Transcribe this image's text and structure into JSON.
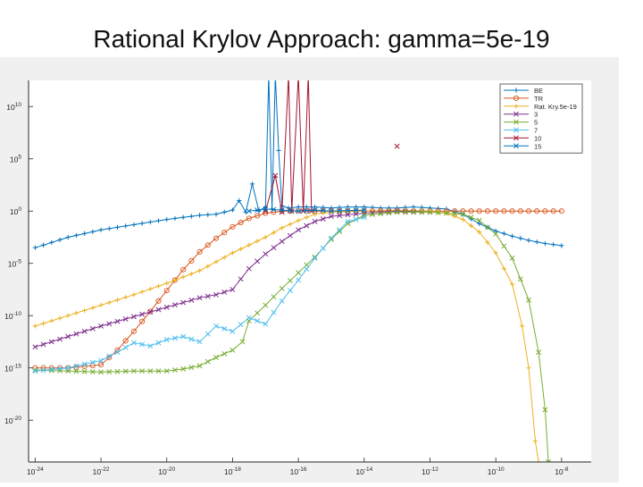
{
  "title": "Rational Krylov Approach: gamma=5e-19",
  "colors": {
    "BE": "#0072bd",
    "TR": "#d95319",
    "Rat": "#edb120",
    "s3": "#7e2f8e",
    "s5": "#77ac30",
    "s7": "#4dbeee",
    "s10": "#a2142f",
    "s15": "#0072bd"
  },
  "chart_data": {
    "type": "line",
    "title": "Rational Krylov Approach: gamma=5e-19",
    "x_scale": "log",
    "y_scale": "log",
    "xlim_exp": [
      -24.2,
      -7.1
    ],
    "ylim_exp": [
      -24,
      12.5
    ],
    "grid": false,
    "legend_position": "top-right",
    "x_ticks": [
      {
        "exp": -24,
        "base": "10",
        "sup": "-24"
      },
      {
        "exp": -22,
        "base": "10",
        "sup": "-22"
      },
      {
        "exp": -20,
        "base": "10",
        "sup": "-20"
      },
      {
        "exp": -18,
        "base": "10",
        "sup": "-18"
      },
      {
        "exp": -16,
        "base": "10",
        "sup": "-16"
      },
      {
        "exp": -14,
        "base": "10",
        "sup": "-14"
      },
      {
        "exp": -12,
        "base": "10",
        "sup": "-12"
      },
      {
        "exp": -10,
        "base": "10",
        "sup": "-10"
      },
      {
        "exp": -8,
        "base": "10",
        "sup": "-8"
      }
    ],
    "y_ticks": [
      {
        "exp": 10,
        "base": "10",
        "sup": "10"
      },
      {
        "exp": 5,
        "base": "10",
        "sup": "5"
      },
      {
        "exp": 0,
        "base": "10",
        "sup": "0"
      },
      {
        "exp": -5,
        "base": "10",
        "sup": "-5"
      },
      {
        "exp": -10,
        "base": "10",
        "sup": "-10"
      },
      {
        "exp": -15,
        "base": "10",
        "sup": "-15"
      },
      {
        "exp": -20,
        "base": "10",
        "sup": "-20"
      }
    ],
    "series": [
      {
        "key": "BE",
        "name": "BE",
        "marker": "plus",
        "color_key": "BE",
        "points": [
          [
            -24.0,
            -3.5
          ],
          [
            -23.0,
            -2.5
          ],
          [
            -22.0,
            -1.8
          ],
          [
            -21.0,
            -1.3
          ],
          [
            -20.0,
            -0.8
          ],
          [
            -19.0,
            -0.4
          ],
          [
            -18.5,
            -0.3
          ],
          [
            -18.0,
            0.1
          ],
          [
            -17.8,
            1.0
          ],
          [
            -17.6,
            -0.1
          ],
          [
            -17.4,
            2.6
          ],
          [
            -17.2,
            0.0
          ],
          [
            -17.0,
            0.4
          ],
          [
            -16.9,
            13.0
          ],
          [
            -16.8,
            0.2
          ],
          [
            -16.7,
            13.0
          ],
          [
            -16.6,
            5.8
          ],
          [
            -16.5,
            0.5
          ],
          [
            -16.3,
            0.3
          ],
          [
            -16.0,
            0.4
          ],
          [
            -15.5,
            0.4
          ],
          [
            -15.0,
            0.3
          ],
          [
            -14.5,
            0.4
          ],
          [
            -14.0,
            0.4
          ],
          [
            -13.5,
            0.3
          ],
          [
            -13.0,
            0.3
          ],
          [
            -12.5,
            0.4
          ],
          [
            -12.0,
            0.3
          ],
          [
            -11.5,
            0.2
          ],
          [
            -11.0,
            -0.3
          ],
          [
            -10.5,
            -1.2
          ],
          [
            -10.0,
            -1.9
          ],
          [
            -9.5,
            -2.4
          ],
          [
            -9.0,
            -2.8
          ],
          [
            -8.5,
            -3.1
          ],
          [
            -8.0,
            -3.3
          ]
        ]
      },
      {
        "key": "TR",
        "name": "TR",
        "marker": "circle",
        "color_key": "TR",
        "points": [
          [
            -24.0,
            -15.0
          ],
          [
            -23.0,
            -15.0
          ],
          [
            -22.0,
            -14.7
          ],
          [
            -21.5,
            -13.3
          ],
          [
            -21.0,
            -11.5
          ],
          [
            -20.5,
            -9.6
          ],
          [
            -20.0,
            -7.6
          ],
          [
            -19.5,
            -5.6
          ],
          [
            -19.0,
            -3.9
          ],
          [
            -18.5,
            -2.6
          ],
          [
            -18.0,
            -1.5
          ],
          [
            -17.5,
            -0.7
          ],
          [
            -17.0,
            -0.2
          ],
          [
            -16.5,
            0.0
          ],
          [
            -16.0,
            0.0
          ],
          [
            -15.0,
            0.0
          ],
          [
            -14.0,
            0.0
          ],
          [
            -13.0,
            0.0
          ],
          [
            -12.0,
            0.0
          ],
          [
            -11.0,
            0.0
          ],
          [
            -10.0,
            0.0
          ],
          [
            -9.0,
            0.0
          ],
          [
            -8.0,
            0.0
          ]
        ]
      },
      {
        "key": "Rat",
        "name": "Rat. Kry.5e-19",
        "marker": "plus",
        "color_key": "Rat",
        "points": [
          [
            -24.0,
            -11.0
          ],
          [
            -23.0,
            -10.0
          ],
          [
            -22.0,
            -9.0
          ],
          [
            -21.0,
            -8.0
          ],
          [
            -20.0,
            -6.9
          ],
          [
            -19.0,
            -5.7
          ],
          [
            -18.0,
            -4.0
          ],
          [
            -17.0,
            -2.5
          ],
          [
            -16.5,
            -1.6
          ],
          [
            -16.0,
            -0.9
          ],
          [
            -15.5,
            -0.3
          ],
          [
            -15.0,
            -0.1
          ],
          [
            -14.0,
            0.0
          ],
          [
            -13.0,
            0.1
          ],
          [
            -12.0,
            0.0
          ],
          [
            -11.5,
            -0.2
          ],
          [
            -11.0,
            -0.8
          ],
          [
            -10.5,
            -2.0
          ],
          [
            -10.0,
            -4.0
          ],
          [
            -9.5,
            -7.0
          ],
          [
            -9.2,
            -11.0
          ],
          [
            -9.0,
            -15.0
          ],
          [
            -8.8,
            -22.0
          ],
          [
            -8.7,
            -24.0
          ]
        ]
      },
      {
        "key": "s3",
        "name": "3",
        "marker": "x",
        "color_key": "s3",
        "points": [
          [
            -24.0,
            -13.0
          ],
          [
            -23.0,
            -12.0
          ],
          [
            -22.0,
            -11.0
          ],
          [
            -21.0,
            -10.1
          ],
          [
            -20.0,
            -9.2
          ],
          [
            -19.0,
            -8.3
          ],
          [
            -18.5,
            -8.0
          ],
          [
            -18.0,
            -7.5
          ],
          [
            -17.5,
            -5.5
          ],
          [
            -17.0,
            -4.1
          ],
          [
            -16.5,
            -2.9
          ],
          [
            -16.0,
            -1.8
          ],
          [
            -15.5,
            -1.0
          ],
          [
            -15.0,
            -0.5
          ],
          [
            -14.0,
            -0.2
          ],
          [
            -13.0,
            0.0
          ],
          [
            -12.0,
            -0.1
          ]
        ]
      },
      {
        "key": "s5",
        "name": "5",
        "marker": "x",
        "color_key": "s5",
        "points": [
          [
            -24.0,
            -15.2
          ],
          [
            -23.0,
            -15.3
          ],
          [
            -22.0,
            -15.4
          ],
          [
            -21.0,
            -15.3
          ],
          [
            -20.0,
            -15.3
          ],
          [
            -19.5,
            -15.1
          ],
          [
            -19.0,
            -14.8
          ],
          [
            -18.5,
            -14.0
          ],
          [
            -18.0,
            -13.3
          ],
          [
            -17.7,
            -12.5
          ],
          [
            -17.5,
            -10.5
          ],
          [
            -17.0,
            -9.0
          ],
          [
            -16.5,
            -7.4
          ],
          [
            -16.0,
            -5.9
          ],
          [
            -15.5,
            -4.4
          ],
          [
            -15.0,
            -2.7
          ],
          [
            -14.5,
            -1.2
          ],
          [
            -14.0,
            -0.4
          ],
          [
            -13.0,
            -0.1
          ],
          [
            -12.0,
            -0.1
          ],
          [
            -11.0,
            -0.3
          ],
          [
            -10.5,
            -0.9
          ],
          [
            -10.0,
            -2.2
          ],
          [
            -9.5,
            -4.5
          ],
          [
            -9.0,
            -8.5
          ],
          [
            -8.7,
            -13.5
          ],
          [
            -8.5,
            -19.0
          ],
          [
            -8.4,
            -24.0
          ]
        ]
      },
      {
        "key": "s7",
        "name": "7",
        "marker": "x",
        "color_key": "s7",
        "points": [
          [
            -24.0,
            -15.3
          ],
          [
            -23.0,
            -15.0
          ],
          [
            -22.0,
            -14.3
          ],
          [
            -21.5,
            -13.5
          ],
          [
            -21.0,
            -12.6
          ],
          [
            -20.5,
            -12.9
          ],
          [
            -20.0,
            -12.3
          ],
          [
            -19.5,
            -12.0
          ],
          [
            -19.0,
            -12.5
          ],
          [
            -18.5,
            -11.0
          ],
          [
            -18.0,
            -11.5
          ],
          [
            -17.5,
            -10.2
          ],
          [
            -17.0,
            -10.8
          ],
          [
            -16.5,
            -8.6
          ],
          [
            -16.0,
            -6.6
          ],
          [
            -15.5,
            -4.5
          ],
          [
            -15.0,
            -2.6
          ],
          [
            -14.5,
            -1.0
          ],
          [
            -14.0,
            -0.6
          ]
        ]
      },
      {
        "key": "s10",
        "name": "10",
        "marker": "x",
        "color_key": "s10",
        "points": [
          [
            -17.0,
            0.0
          ],
          [
            -16.7,
            3.4
          ],
          [
            -16.5,
            -0.1
          ],
          [
            -16.3,
            13.0
          ],
          [
            -16.2,
            0.0
          ],
          [
            -16.0,
            13.0
          ],
          [
            -15.85,
            0.0
          ],
          [
            -15.7,
            13.0
          ],
          [
            -15.6,
            0.0
          ]
        ]
      },
      {
        "key": "s10_outlier",
        "name": "",
        "marker": "x",
        "color_key": "s10",
        "no_line": true,
        "points": [
          [
            -13.0,
            6.2
          ]
        ]
      },
      {
        "key": "s15",
        "name": "15",
        "marker": "x",
        "color_key": "s15",
        "points": [
          [
            -17.5,
            0.0
          ],
          [
            -17.0,
            0.2
          ],
          [
            -16.5,
            0.1
          ],
          [
            -16.0,
            0.0
          ],
          [
            -15.5,
            0.1
          ],
          [
            -15.0,
            0.0
          ],
          [
            -14.0,
            0.1
          ]
        ]
      }
    ],
    "legend": [
      {
        "label": "BE",
        "color_key": "BE",
        "marker": "plus"
      },
      {
        "label": "TR",
        "color_key": "TR",
        "marker": "circle"
      },
      {
        "label": "Rat. Kry.5e-19",
        "color_key": "Rat",
        "marker": "plus"
      },
      {
        "label": "3",
        "color_key": "s3",
        "marker": "x"
      },
      {
        "label": "5",
        "color_key": "s5",
        "marker": "x"
      },
      {
        "label": "7",
        "color_key": "s7",
        "marker": "x"
      },
      {
        "label": "10",
        "color_key": "s10",
        "marker": "x"
      },
      {
        "label": "15",
        "color_key": "s15",
        "marker": "x"
      }
    ]
  }
}
